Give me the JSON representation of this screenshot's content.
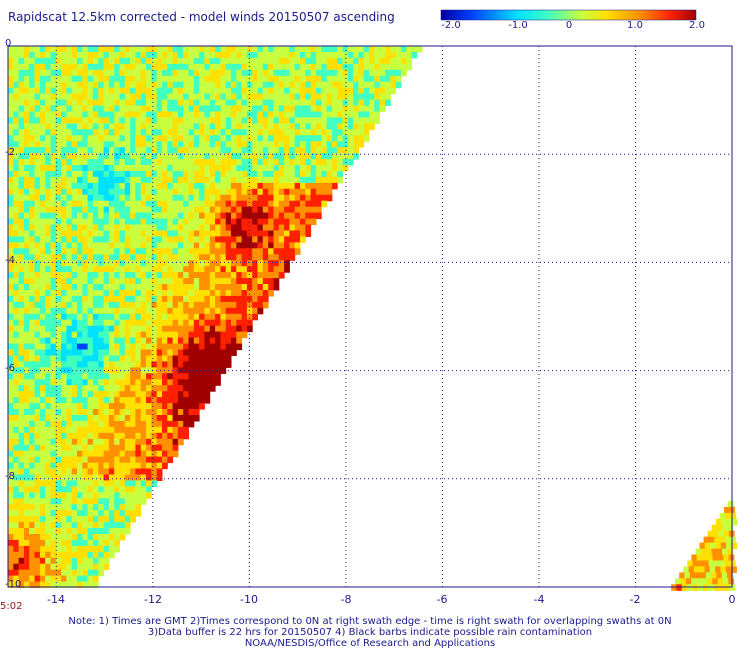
{
  "chart_data": {
    "type": "heatmap",
    "title": "Rapidscat 12.5km corrected - model winds 20150507 ascending",
    "xlim": [
      -15,
      0
    ],
    "ylim": [
      -10,
      0
    ],
    "x_ticks": [
      "-14",
      "-12",
      "-10",
      "-8",
      "-6",
      "-4",
      "-2",
      "0"
    ],
    "y_ticks": [
      "0",
      "-2",
      "-4",
      "-6",
      "-8",
      "-10"
    ],
    "colorbar": {
      "range": [
        -2.0,
        2.0
      ],
      "ticks": [
        "-2.0",
        "-1.0",
        "0",
        "1.0",
        "2.0"
      ],
      "colors": [
        "#0000a0",
        "#0040ff",
        "#00e0ff",
        "#40ffc0",
        "#c8ff40",
        "#ffe000",
        "#ff9000",
        "#ff2000",
        "#a00000"
      ]
    },
    "grid": true,
    "swaths": [
      {
        "description_shape": "left swath",
        "top_edge_lat": 0.0,
        "right_edge_lon_at_top": -6.5,
        "right_edge_lon_at_bottom": -13.3,
        "bottom_lat": -10.0,
        "mean_values_by_region": {
          "upper_left": 0.0,
          "central_band_near_edge": 1.2,
          "max_region_lon_-11_lat_-6": 2.0,
          "lower_left_corner": 1.1
        }
      },
      {
        "description_shape": "right swath",
        "top_lat": -8.3,
        "left_lon_at_bottom": -1.3,
        "right_lon": 0.0,
        "mean_value": 0.6
      }
    ]
  },
  "time_label": "5:02",
  "notes": [
    "Note: 1) Times are GMT 2)Times correspond to 0N at right swath edge - time is right swath for overlapping swaths at 0N",
    "3)Data buffer is 22 hrs for 20150507 4) Black barbs indicate possible rain contamination",
    "NOAA/NESDIS/Office of Research and Applications"
  ]
}
